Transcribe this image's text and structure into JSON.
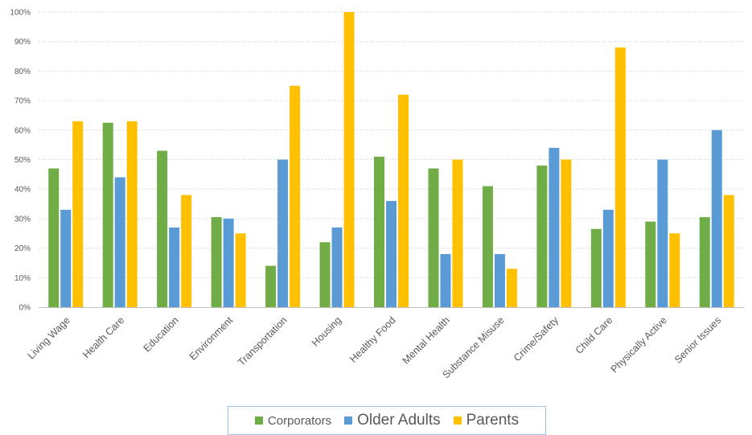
{
  "chart_data": {
    "type": "bar",
    "categories": [
      "Living Wage",
      "Health Care",
      "Education",
      "Environment",
      "Transportation",
      "Housing",
      "Healthy Food",
      "Mental Health",
      "Substance Misuse",
      "Crime/Safety",
      "Child Care",
      "Physically Active",
      "Senior Issues"
    ],
    "series": [
      {
        "name": "Corporators",
        "color": "#70ad47",
        "values": [
          47,
          62.5,
          53,
          30.5,
          14,
          22,
          51,
          47,
          41,
          48,
          26.5,
          29,
          30.5
        ]
      },
      {
        "name": "Older Adults",
        "color": "#5b9bd5",
        "values": [
          33,
          44,
          27,
          30,
          50,
          27,
          36,
          18,
          18,
          54,
          33,
          50,
          60
        ]
      },
      {
        "name": "Parents",
        "color": "#ffc000",
        "values": [
          63,
          63,
          38,
          25,
          75,
          100,
          72,
          50,
          13,
          50,
          88,
          25,
          38
        ]
      }
    ],
    "y_ticks": [
      "0%",
      "10%",
      "20%",
      "30%",
      "40%",
      "50%",
      "60%",
      "70%",
      "80%",
      "90%",
      "100%"
    ],
    "ylim": [
      0,
      100
    ],
    "grid": true,
    "legend_position": "bottom"
  }
}
